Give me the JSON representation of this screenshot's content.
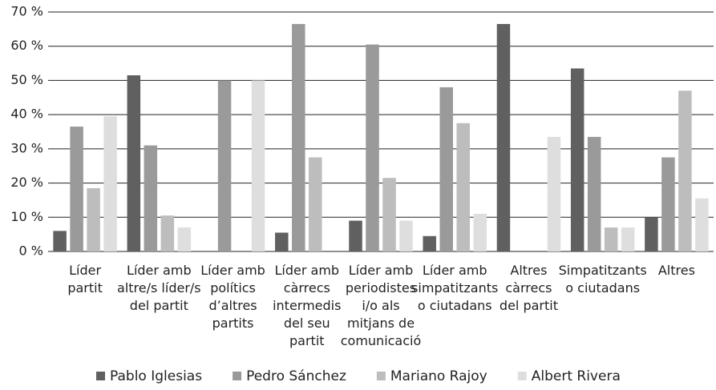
{
  "chart_data": {
    "type": "bar",
    "categories": [
      "Líder\npartit",
      "Líder amb\naltre/s líder/s\ndel partit",
      "Líder amb\npolítics\nd’altres\npartits",
      "Líder amb\ncàrrecs\nintermedis\ndel seu\npartit",
      "Líder amb\nperiodistes\ni/o als\nmitjans de\ncomunicació",
      "Líder amb\nsimpatitzants\no ciutadans",
      "Altres\ncàrrecs\ndel partit",
      "Simpatitzants\no ciutadans",
      "Altres"
    ],
    "series": [
      {
        "name": "Pablo Iglesias",
        "color": "#606060",
        "values": [
          6,
          51.5,
          0,
          5.5,
          9,
          4.5,
          66.5,
          53.5,
          10
        ]
      },
      {
        "name": "Pedro Sánchez",
        "color": "#9a9a9a",
        "values": [
          36.5,
          31,
          50,
          66.5,
          60.5,
          48,
          0,
          33.5,
          27.5
        ]
      },
      {
        "name": "Mariano Rajoy",
        "color": "#bdbdbd",
        "values": [
          18.5,
          10.5,
          0,
          27.5,
          21.5,
          37.5,
          0,
          7,
          47
        ]
      },
      {
        "name": "Albert Rivera",
        "color": "#dedede",
        "values": [
          39.5,
          7,
          50,
          0,
          9,
          11,
          33.5,
          7,
          15.5
        ]
      }
    ],
    "ylim": [
      0,
      70
    ],
    "yticks": [
      {
        "value": 0,
        "label": "0 %"
      },
      {
        "value": 10,
        "label": "10 %"
      },
      {
        "value": 20,
        "label": "20 %"
      },
      {
        "value": 30,
        "label": "30 %"
      },
      {
        "value": 40,
        "label": "40 %"
      },
      {
        "value": 50,
        "label": "50 %"
      },
      {
        "value": 60,
        "label": "60 %"
      },
      {
        "value": 70,
        "label": "70 %"
      }
    ],
    "grid": true
  }
}
